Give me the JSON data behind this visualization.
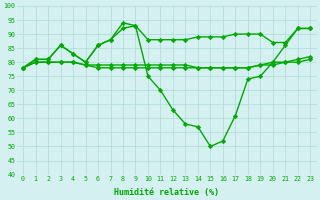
{
  "xlabel": "Humidité relative (%)",
  "xlim": [
    -0.5,
    23.5
  ],
  "ylim": [
    40,
    100
  ],
  "yticks": [
    40,
    45,
    50,
    55,
    60,
    65,
    70,
    75,
    80,
    85,
    90,
    95,
    100
  ],
  "xticks": [
    0,
    1,
    2,
    3,
    4,
    5,
    6,
    7,
    8,
    9,
    10,
    11,
    12,
    13,
    14,
    15,
    16,
    17,
    18,
    19,
    20,
    21,
    22,
    23
  ],
  "background_color": "#d4f0f0",
  "grid_color": "#b0d8d8",
  "line_color": "#00aa00",
  "marker": "D",
  "markersize": 2.2,
  "linewidth": 1.0,
  "series": [
    [
      78,
      81,
      81,
      86,
      83,
      80,
      86,
      88,
      92,
      93,
      88,
      88,
      88,
      88,
      89,
      89,
      89,
      90,
      90,
      90,
      87,
      87,
      92,
      92
    ],
    [
      78,
      81,
      81,
      86,
      83,
      80,
      86,
      88,
      94,
      93,
      75,
      70,
      63,
      58,
      57,
      50,
      52,
      61,
      74,
      75,
      80,
      86,
      92,
      92
    ],
    [
      78,
      80,
      80,
      80,
      80,
      79,
      78,
      78,
      78,
      78,
      78,
      78,
      78,
      78,
      78,
      78,
      78,
      78,
      78,
      79,
      79,
      80,
      80,
      81
    ],
    [
      78,
      80,
      80,
      80,
      80,
      79,
      79,
      79,
      79,
      79,
      79,
      79,
      79,
      79,
      78,
      78,
      78,
      78,
      78,
      79,
      80,
      80,
      81,
      82
    ]
  ]
}
